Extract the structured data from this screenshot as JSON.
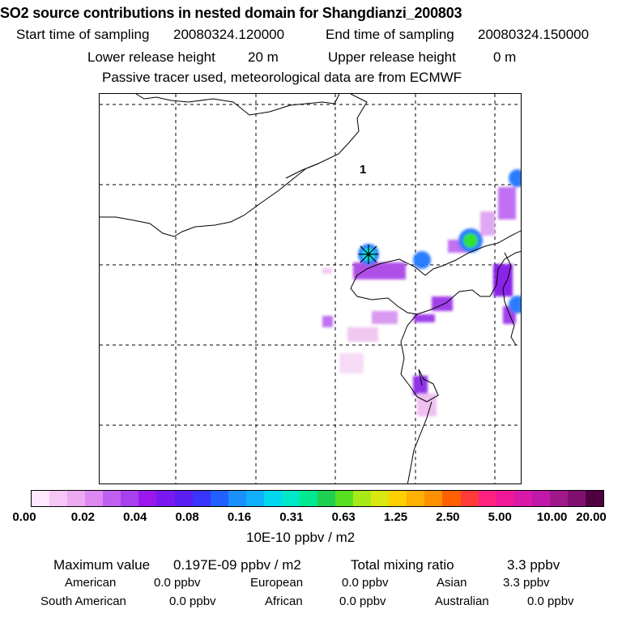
{
  "title": "SO2 source contributions in nested domain for Shangdianzi_200803",
  "header": {
    "start_label": "Start time of sampling",
    "start_value": "20080324.120000",
    "end_label": "End time of sampling",
    "end_value": "20080324.150000",
    "lower_label": "Lower release height",
    "lower_value": "20 m",
    "upper_label": "Upper release height",
    "upper_value": "0 m",
    "note": "Passive tracer used, meteorological data are from ECMWF"
  },
  "map": {
    "station_label": "1",
    "colors": {
      "coast": "#000000",
      "grid": "#000000",
      "low": "#f0c8f0",
      "mid": "#b050e8",
      "high": "#8000e0",
      "blue": "#2a7dff",
      "cyan": "#00e5e0",
      "green": "#30e030",
      "marker_fill": "#e0e000"
    }
  },
  "colorbar": {
    "colors": [
      "#fde8fd",
      "#f6c6f6",
      "#ecaaf2",
      "#dc88f0",
      "#c060f0",
      "#a840ee",
      "#9a18ee",
      "#7a18f2",
      "#5a1ef2",
      "#3a34ff",
      "#2060ff",
      "#1a90ff",
      "#10b0ff",
      "#00d8f0",
      "#00e8c8",
      "#00e890",
      "#20d050",
      "#58e020",
      "#a8ea18",
      "#d8e810",
      "#ffd000",
      "#ffb000",
      "#ff9000",
      "#ff6000",
      "#ff3a3a",
      "#ff2080",
      "#f01898",
      "#d818a8",
      "#c018a8",
      "#a0188c",
      "#801070",
      "#500040"
    ],
    "ticks": [
      "0.00",
      "0.02",
      "0.04",
      "0.08",
      "0.16",
      "0.31",
      "0.63",
      "1.25",
      "2.50",
      "5.00",
      "10.00",
      "20.00"
    ],
    "unit": "10E-10 ppbv / m2"
  },
  "footer": {
    "max_label": "Maximum value",
    "max_value": "0.197E-09 ppbv / m2",
    "total_label": "Total mixing ratio",
    "total_value": "3.3 ppbv",
    "regions": [
      {
        "name": "American",
        "value": "0.0 ppbv"
      },
      {
        "name": "European",
        "value": "0.0 ppbv"
      },
      {
        "name": "Asian",
        "value": "3.3 ppbv"
      },
      {
        "name": "South American",
        "value": "0.0 ppbv"
      },
      {
        "name": "African",
        "value": "0.0 ppbv"
      },
      {
        "name": "Australian",
        "value": "0.0 ppbv"
      }
    ]
  }
}
